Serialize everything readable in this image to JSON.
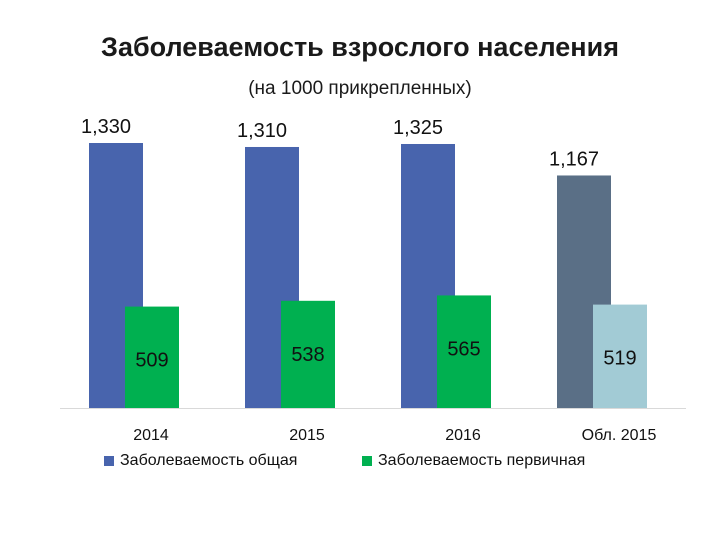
{
  "chart_data": {
    "type": "bar",
    "title": "Заболеваемость взрослого населения",
    "subtitle": "(на 1000 прикрепленных)",
    "categories": [
      "2014",
      "2015",
      "2016",
      "Обл. 2015"
    ],
    "series": [
      {
        "name": "Заболеваемость общая",
        "values": [
          1330,
          1310,
          1325,
          1167
        ],
        "labels": [
          "1,330",
          "1,310",
          "1,325",
          "1,167"
        ],
        "colors": [
          "#4864AD",
          "#4864AD",
          "#4864AD",
          "#5A6F86"
        ]
      },
      {
        "name": "Заболеваемость первичная",
        "values": [
          509,
          538,
          565,
          519
        ],
        "labels": [
          "509",
          "538",
          "565",
          "519"
        ],
        "colors": [
          "#00B050",
          "#00B050",
          "#00B050",
          "#A2CBD5"
        ]
      }
    ],
    "ylim": [
      0,
      1350
    ],
    "grid": false,
    "legend": "bottom"
  }
}
